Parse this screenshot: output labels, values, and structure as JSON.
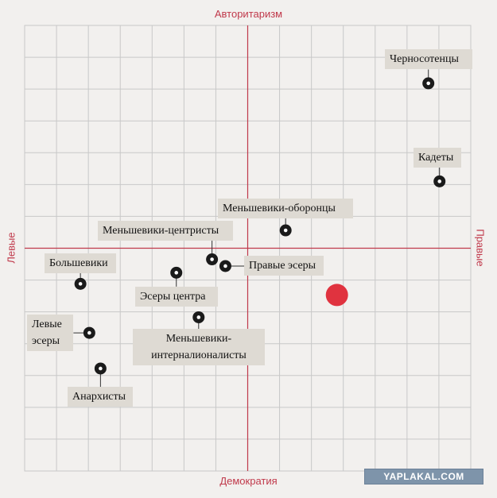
{
  "chart_data": {
    "type": "scatter",
    "title": "",
    "axes": {
      "top": "Авторитаризм",
      "bottom": "Демократия",
      "left": "Левые",
      "right": "Правые"
    },
    "xlim": [
      -1,
      1
    ],
    "ylim": [
      -1,
      1
    ],
    "grid": true,
    "points": [
      {
        "name": "Черносотенцы",
        "x": 0.81,
        "y": 0.74
      },
      {
        "name": "Кадеты",
        "x": 0.86,
        "y": 0.3
      },
      {
        "name": "Меньшевики-оборонцы",
        "x": 0.17,
        "y": 0.08
      },
      {
        "name": "Меньшевики-центристы",
        "x": -0.16,
        "y": -0.05
      },
      {
        "name": "Правые эсеры",
        "x": -0.1,
        "y": -0.08
      },
      {
        "name": "Большевики",
        "x": -0.75,
        "y": -0.16
      },
      {
        "name": "Эсеры центра",
        "x": -0.32,
        "y": -0.11
      },
      {
        "name": "Левые эсеры",
        "x": -0.71,
        "y": -0.38
      },
      {
        "name": "Меньшевики-интерналионалисты",
        "x": -0.22,
        "y": -0.31
      },
      {
        "name": "Анархисты",
        "x": -0.66,
        "y": -0.54
      }
    ],
    "highlight": {
      "x": 0.4,
      "y": -0.21,
      "color": "#e0333f"
    }
  },
  "watermark": "YAPLAKAL.COM",
  "colors": {
    "axis": "#c0394b",
    "grid": "#c8c8c8",
    "label_bg": "#dedad3",
    "highlight": "#e0333f"
  }
}
